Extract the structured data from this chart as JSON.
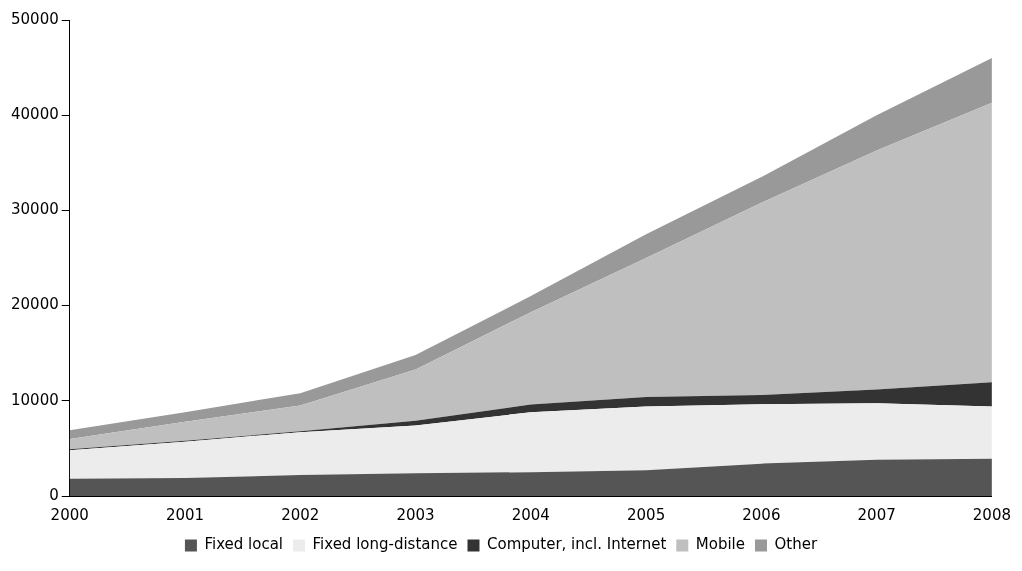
{
  "chart_data": {
    "type": "area",
    "stacked": true,
    "categories": [
      "2000",
      "2001",
      "2002",
      "2003",
      "2004",
      "2005",
      "2006",
      "2007",
      "2008"
    ],
    "ylim": [
      0,
      50000
    ],
    "yticks": [
      0,
      10000,
      20000,
      30000,
      40000,
      50000
    ],
    "grid": false,
    "legend": "bottom",
    "series": [
      {
        "name": "Fixed local",
        "color": "#555555",
        "values": [
          1800,
          1900,
          2200,
          2400,
          2500,
          2700,
          3400,
          3800,
          3900
        ]
      },
      {
        "name": "Fixed long-distance",
        "color": "#ececec",
        "values": [
          3000,
          3800,
          4500,
          5000,
          6300,
          6700,
          6250,
          5950,
          5500
        ]
      },
      {
        "name": "Computer, incl. Internet",
        "color": "#333333",
        "values": [
          100,
          100,
          100,
          500,
          800,
          1000,
          950,
          1450,
          2550
        ]
      },
      {
        "name": "Mobile",
        "color": "#bfbfbf",
        "values": [
          1100,
          2000,
          2700,
          5400,
          9700,
          14600,
          20200,
          25100,
          29350
        ]
      },
      {
        "name": "Other",
        "color": "#999999",
        "values": [
          900,
          1000,
          1300,
          1500,
          1700,
          2500,
          2700,
          3700,
          4700
        ]
      }
    ]
  }
}
